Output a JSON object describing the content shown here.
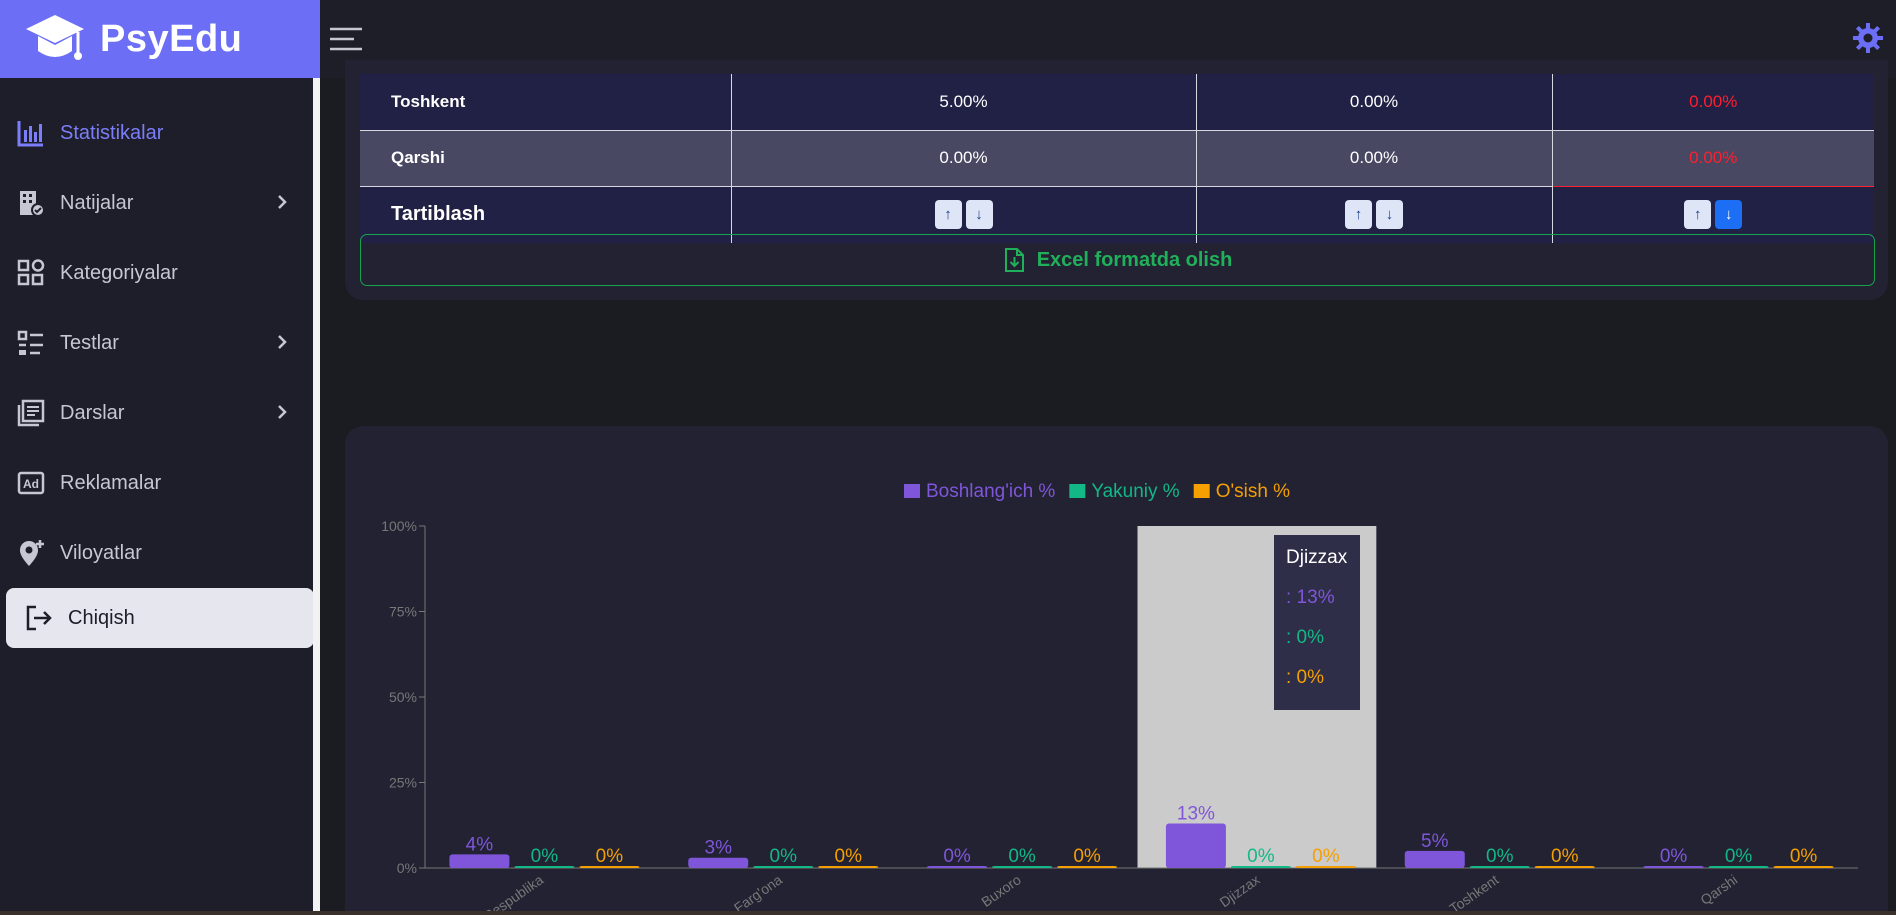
{
  "brand": {
    "name": "PsyEdu"
  },
  "nav": {
    "items": [
      {
        "label": "Statistikalar",
        "icon": "bar-chart-icon",
        "active": true
      },
      {
        "label": "Natijalar",
        "icon": "building-check-icon",
        "arrow": true
      },
      {
        "label": "Kategoriyalar",
        "icon": "grid-icon"
      },
      {
        "label": "Testlar",
        "icon": "list-check-icon",
        "arrow": true
      },
      {
        "label": "Darslar",
        "icon": "book-icon",
        "arrow": true
      },
      {
        "label": "Reklamalar",
        "icon": "ad-icon"
      },
      {
        "label": "Viloyatlar",
        "icon": "map-pin-plus-icon"
      },
      {
        "label": "Chiqish",
        "icon": "logout-icon"
      }
    ]
  },
  "table": {
    "rows": [
      {
        "name": "Toshkent",
        "c1": "5.00%",
        "c2": "0.00%",
        "c3": "0.00%"
      },
      {
        "name": "Qarshi",
        "c1": "0.00%",
        "c2": "0.00%",
        "c3": "0.00%"
      }
    ],
    "sort_label": "Tartiblash",
    "sort_up": "↑",
    "sort_down": "↓"
  },
  "excel_button": {
    "label": "Excel formatda olish"
  },
  "colors": {
    "accent": "#6c6ff5",
    "purple": "#7f56d9",
    "green": "#12b886",
    "orange": "#f59f00",
    "red": "#ff1f2f"
  },
  "chart_data": {
    "type": "bar",
    "categories": [
      "Respublika",
      "Farg'ona",
      "Buxoro",
      "Djizzax",
      "Toshkent",
      "Qarshi"
    ],
    "series": [
      {
        "name": "Boshlang'ich %",
        "values": [
          4,
          3,
          0,
          13,
          5,
          0
        ],
        "color": "#7f56d9"
      },
      {
        "name": "Yakuniy %",
        "values": [
          0,
          0,
          0,
          0,
          0,
          0
        ],
        "color": "#12b886"
      },
      {
        "name": "O'sish %",
        "values": [
          0,
          0,
          0,
          0,
          0,
          0
        ],
        "color": "#f59f00"
      }
    ],
    "yticks": [
      "0%",
      "25%",
      "50%",
      "75%",
      "100%"
    ],
    "ylim": [
      0,
      100
    ],
    "legend": "top-center",
    "tooltip": {
      "title": "Djizzax",
      "lines": [
        ": 13%",
        ": 0%",
        ": 0%"
      ],
      "category_index": 3
    }
  }
}
